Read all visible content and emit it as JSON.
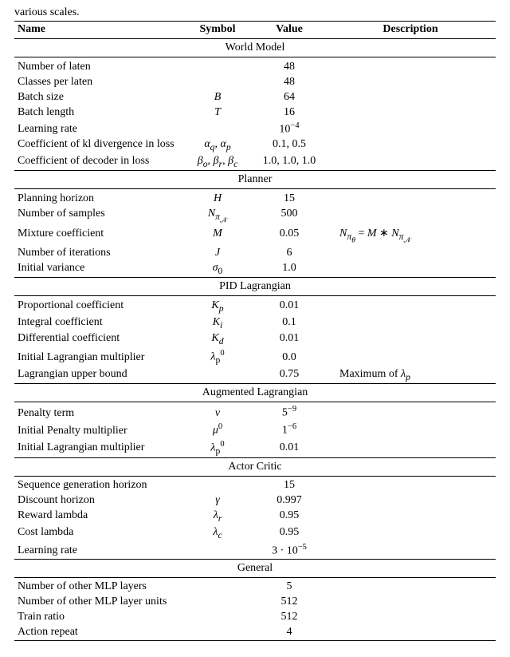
{
  "pretext": "various scales.",
  "headers": {
    "name": "Name",
    "symbol": "Symbol",
    "value": "Value",
    "desc": "Description"
  },
  "sections": [
    {
      "title": "World Model",
      "rows": [
        {
          "name": "Number of laten",
          "sym": "",
          "val": "48",
          "desc": ""
        },
        {
          "name": "Classes per laten",
          "sym": "",
          "val": "48",
          "desc": ""
        },
        {
          "name": "Batch size",
          "sym": "B",
          "val": "64",
          "desc": ""
        },
        {
          "name": "Batch length",
          "sym": "T",
          "val": "16",
          "desc": ""
        },
        {
          "name": "Learning rate",
          "sym": "",
          "val_html": "10<sup>−4</sup>",
          "desc": ""
        },
        {
          "name": "Coefficient of kl divergence in loss",
          "sym_html": "<i>α<sub>q</sub></i>, <i>α<sub>p</sub></i>",
          "val": "0.1, 0.5",
          "desc": ""
        },
        {
          "name": "Coefficient of decoder in loss",
          "sym_html": "<i>β<sub>o</sub></i>, <i>β<sub>r</sub></i>, <i>β<sub>c</sub></i>",
          "val": "1.0, 1.0, 1.0",
          "desc": ""
        }
      ]
    },
    {
      "title": "Planner",
      "rows": [
        {
          "name": "Planning horizon",
          "sym": "H",
          "val": "15",
          "desc": ""
        },
        {
          "name": "Number of samples",
          "sym_html": "<i>N</i><sub><i>π</i><sub>𝒩</sub></sub>",
          "val": "500",
          "desc": ""
        },
        {
          "name": "Mixture coefficient",
          "sym": "M",
          "val": "0.05",
          "desc_html": "<i>N</i><sub><i>π<sub>θ</sub></i></sub> = <i>M</i> ∗ <i>N</i><sub><i>π</i><sub>𝒩</sub></sub>"
        },
        {
          "name": "Number of iterations",
          "sym": "J",
          "val": "6",
          "desc": ""
        },
        {
          "name": "Initial variance",
          "sym_html": "<i>σ</i><sub>0</sub>",
          "val": "1.0",
          "desc": ""
        }
      ]
    },
    {
      "title": "PID Lagrangian",
      "rows": [
        {
          "name": "Proportional coefficient",
          "sym_html": "<i>K<sub>p</sub></i>",
          "val": "0.01",
          "desc": ""
        },
        {
          "name": "Integral coefficient",
          "sym_html": "<i>K<sub>i</sub></i>",
          "val": "0.1",
          "desc": ""
        },
        {
          "name": "Differential coefficient",
          "sym_html": "<i>K<sub>d</sub></i>",
          "val": "0.01",
          "desc": ""
        },
        {
          "name": "Initial Lagrangian multiplier",
          "sym_html": "<i>λ</i><sub>p</sub><sup>0</sup>",
          "val": "0.0",
          "desc": ""
        },
        {
          "name": "Lagrangian upper bound",
          "sym": "",
          "val": "0.75",
          "desc_html": "Maximum of <i>λ<sub>p</sub></i>"
        }
      ]
    },
    {
      "title": "Augmented Lagrangian",
      "rows": [
        {
          "name": "Penalty term",
          "sym": "ν",
          "val_html": "5<sup>−9</sup>",
          "desc": ""
        },
        {
          "name": "Initial Penalty multiplier",
          "sym_html": "<i>μ</i><sup>0</sup>",
          "val_html": "1<sup>−6</sup>",
          "desc": ""
        },
        {
          "name": "Initial Lagrangian multiplier",
          "sym_html": "<i>λ</i><sub>p</sub><sup>0</sup>",
          "val": "0.01",
          "desc": ""
        }
      ]
    },
    {
      "title": "Actor Critic",
      "rows": [
        {
          "name": "Sequence generation horizon",
          "sym": "",
          "val": "15",
          "desc": ""
        },
        {
          "name": "Discount horizon",
          "sym": "γ",
          "val": "0.997",
          "desc": ""
        },
        {
          "name": "Reward lambda",
          "sym_html": "<i>λ<sub>r</sub></i>",
          "val": "0.95",
          "desc": ""
        },
        {
          "name": "Cost lambda",
          "sym_html": "<i>λ<sub>c</sub></i>",
          "val": "0.95",
          "desc": ""
        },
        {
          "name": "Learning rate",
          "sym": "",
          "val_html": "3 · 10<sup>−5</sup>",
          "desc": ""
        }
      ]
    },
    {
      "title": "General",
      "rows": [
        {
          "name": "Number of other MLP layers",
          "sym": "",
          "val": "5",
          "desc": ""
        },
        {
          "name": "Number of other MLP layer units",
          "sym": "",
          "val": "512",
          "desc": ""
        },
        {
          "name": "Train ratio",
          "sym": "",
          "val": "512",
          "desc": ""
        },
        {
          "name": "Action repeat",
          "sym": "",
          "val": "4",
          "desc": ""
        }
      ]
    }
  ]
}
